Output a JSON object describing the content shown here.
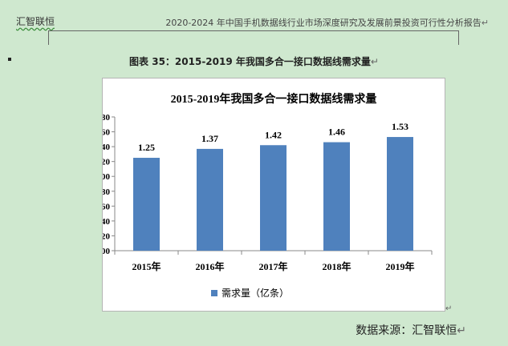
{
  "header": {
    "left": "汇智联恒",
    "right": "2020-2024 年中国手机数据线行业市场深度研究及发展前景投资可行性分析报告",
    "para_mark": "↵"
  },
  "caption": {
    "text": "图表  35：2015-2019 年我国多合一接口数据线需求量",
    "para_mark": "↵"
  },
  "source": {
    "text": "数据来源：汇智联恒",
    "para_mark": "↵"
  },
  "frame_mark": "↵",
  "colors": {
    "bar": "#4f81bd",
    "background": "#cfe8cf"
  },
  "chart_data": {
    "type": "bar",
    "title": "2015-2019年我国多合一接口数据线需求量",
    "categories": [
      "2015年",
      "2016年",
      "2017年",
      "2018年",
      "2019年"
    ],
    "series": [
      {
        "name": "需求量（亿条）",
        "values": [
          1.25,
          1.37,
          1.42,
          1.46,
          1.53
        ]
      }
    ],
    "data_labels": [
      "1.25",
      "1.37",
      "1.42",
      "1.46",
      "1.53"
    ],
    "y_ticks": [
      "0.00",
      "0.20",
      "0.40",
      "0.60",
      "0.80",
      "1.00",
      "1.20",
      "1.40",
      "1.60",
      "1.80"
    ],
    "ylim": [
      0,
      1.8
    ],
    "grid": false,
    "legend_position": "bottom"
  }
}
